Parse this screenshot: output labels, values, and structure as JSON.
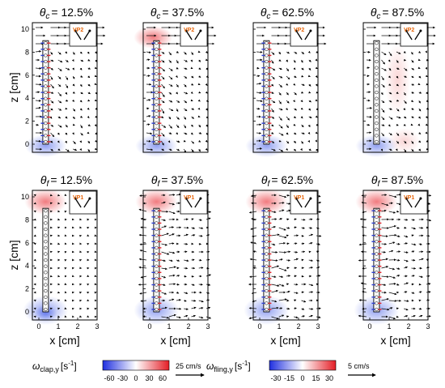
{
  "rows": [
    {
      "sym": "θ",
      "sub": "c",
      "titles": [
        "= 12.5%",
        "= 37.5%",
        "= 62.5%",
        "= 87.5%"
      ],
      "inset": "VP2",
      "ylabel": "z [cm]",
      "yticks": [
        "0",
        "2",
        "4",
        "6",
        "8",
        "10"
      ]
    },
    {
      "sym": "θ",
      "sub": "f",
      "titles": [
        "= 12.5%",
        "= 37.5%",
        "= 62.5%",
        "= 87.5%"
      ],
      "inset": "VP1",
      "ylabel": "z [cm]",
      "yticks": [
        "0",
        "2",
        "4",
        "6",
        "8",
        "10"
      ],
      "xlabel": "x [cm]",
      "xticks": [
        "0",
        "1",
        "2",
        "3"
      ]
    }
  ],
  "colorbars": [
    {
      "sym": "ω",
      "sub": "clap,y",
      "unit": "[s",
      "sup": "-1",
      "close": "]",
      "ticks": [
        "-60",
        "-30",
        "0",
        "30",
        "60"
      ],
      "scale": "25 cm/s"
    },
    {
      "sym": "ω",
      "sub": "fling,y",
      "unit": "[s",
      "sup": "-1",
      "close": "]",
      "ticks": [
        "-30",
        "-15",
        "0",
        "15",
        "30"
      ],
      "scale": "5 cm/s"
    }
  ],
  "colors": {
    "negative": "#2b3fd6",
    "positive": "#e8232a",
    "inset_label": "#e8660a"
  }
}
